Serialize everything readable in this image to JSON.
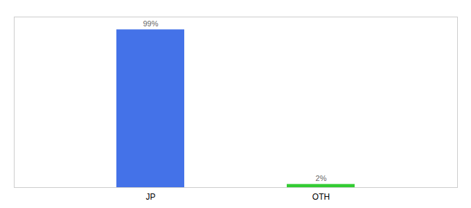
{
  "chart_data": {
    "type": "bar",
    "categories": [
      "JP",
      "OTH"
    ],
    "values": [
      99,
      2
    ],
    "value_labels": [
      "99%",
      "2%"
    ],
    "colors": [
      "#4472e8",
      "#33cc33"
    ],
    "ylim": [
      0,
      107
    ],
    "data_labels": true,
    "tick_labels": "x"
  }
}
